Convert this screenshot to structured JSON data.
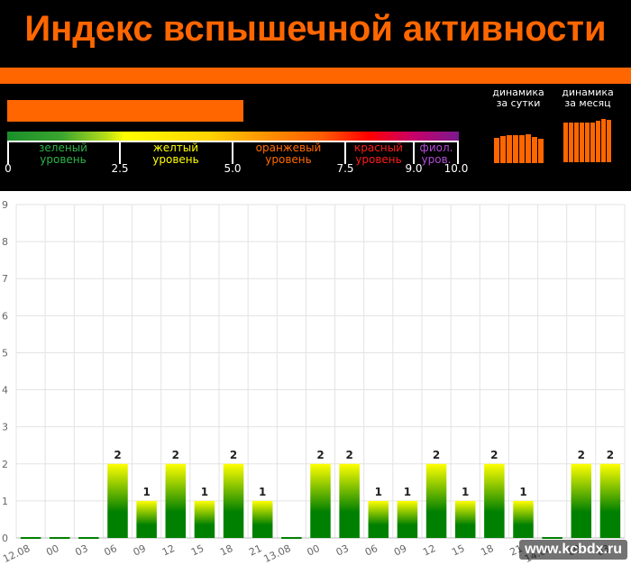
{
  "header": {
    "title": "Индекс вспышечной активности",
    "current_index": 5.2,
    "scale_ticks": [
      "0",
      "2.5",
      "5.0",
      "7.5",
      "9.0",
      "10.0"
    ],
    "levels": [
      {
        "line1": "зеленый",
        "line2": "уровень",
        "color": "#2db34a"
      },
      {
        "line1": "желтый",
        "line2": "уровень",
        "color": "#ffff00"
      },
      {
        "line1": "оранжевый",
        "line2": "уровень",
        "color": "#ff6a00"
      },
      {
        "line1": "красный",
        "line2": "уровень",
        "color": "#ff1a1a"
      },
      {
        "line1": "фиол.",
        "line2": "уров.",
        "color": "#b04cd6"
      }
    ],
    "accent_color": "#ff6600"
  },
  "dynamics": {
    "day_label_1": "динамика",
    "day_label_2": "за сутки",
    "month_label_1": "динамика",
    "month_label_2": "за месяц"
  },
  "chart_data": {
    "type": "bar",
    "categories": [
      "12.08",
      "00",
      "03",
      "06",
      "09",
      "12",
      "15",
      "18",
      "21",
      "13.08",
      "00",
      "03",
      "06",
      "09",
      "12",
      "15",
      "18",
      "21",
      "14.08",
      "00",
      "03"
    ],
    "values": [
      0,
      0,
      0,
      2,
      1,
      2,
      1,
      2,
      1,
      0,
      2,
      2,
      1,
      1,
      2,
      1,
      2,
      1,
      0,
      2,
      2
    ],
    "ylim": [
      0,
      9
    ],
    "yticks": [
      "0",
      "1",
      "2",
      "3",
      "4",
      "5",
      "6",
      "7",
      "8",
      "9"
    ],
    "grid": true,
    "bar_color_top": "#ffff00",
    "bar_color_bottom": "#008000"
  },
  "watermark": "www.kcbdx.ru"
}
